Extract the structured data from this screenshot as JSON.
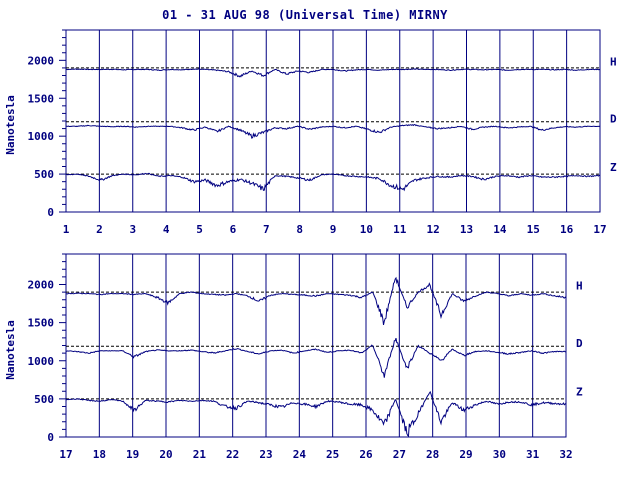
{
  "title": "01 - 31 AUG 98 (Universal Time) MIRNY",
  "chart_data": [
    {
      "type": "line",
      "panel": "top",
      "ylabel": "Nanotesla",
      "ylim": [
        0,
        2400
      ],
      "yticks": [
        0,
        500,
        1000,
        1500,
        2000
      ],
      "xlim": [
        1,
        17
      ],
      "xticks": [
        "1",
        "2",
        "3",
        "4",
        "5",
        "6",
        "7",
        "8",
        "9",
        "10",
        "11",
        "12",
        "13",
        "14",
        "15",
        "16",
        "17"
      ],
      "baselines": [
        1900,
        1190,
        500
      ],
      "series": [
        {
          "name": "H",
          "base": 1880,
          "values": [
            1880,
            1885,
            1880,
            1880,
            1882,
            1875,
            1880,
            1880,
            1870,
            1880,
            1875,
            1885,
            1880,
            1870,
            1850,
            1790,
            1860,
            1800,
            1880,
            1820,
            1860,
            1840,
            1880,
            1880,
            1860,
            1875,
            1880,
            1870,
            1880,
            1880,
            1885,
            1880,
            1880,
            1870,
            1880,
            1880,
            1875,
            1880,
            1870,
            1880,
            1880,
            1880,
            1875,
            1880,
            1870,
            1880,
            1880
          ]
        },
        {
          "name": "D",
          "base": 1130,
          "values": [
            1130,
            1130,
            1140,
            1130,
            1125,
            1130,
            1120,
            1130,
            1130,
            1130,
            1110,
            1080,
            1120,
            1060,
            1130,
            1080,
            1000,
            1050,
            1110,
            1100,
            1130,
            1090,
            1120,
            1130,
            1110,
            1130,
            1090,
            1050,
            1120,
            1140,
            1150,
            1120,
            1100,
            1110,
            1130,
            1090,
            1120,
            1130,
            1110,
            1120,
            1130,
            1080,
            1110,
            1125,
            1120,
            1130,
            1130
          ]
        },
        {
          "name": "Z",
          "base": 490,
          "values": [
            490,
            500,
            470,
            420,
            480,
            500,
            490,
            510,
            470,
            480,
            460,
            400,
            420,
            350,
            400,
            430,
            380,
            300,
            480,
            470,
            450,
            420,
            490,
            500,
            480,
            470,
            460,
            440,
            350,
            300,
            420,
            450,
            470,
            460,
            480,
            470,
            430,
            470,
            480,
            460,
            480,
            460,
            460,
            470,
            480,
            470,
            480
          ]
        }
      ]
    },
    {
      "type": "line",
      "panel": "bottom",
      "ylabel": "Nanotesla",
      "ylim": [
        0,
        2400
      ],
      "yticks": [
        0,
        500,
        1000,
        1500,
        2000
      ],
      "xlim": [
        17,
        32
      ],
      "xticks": [
        "17",
        "18",
        "19",
        "20",
        "21",
        "22",
        "23",
        "24",
        "25",
        "26",
        "27",
        "28",
        "29",
        "30",
        "31",
        "32"
      ],
      "baselines": [
        1900,
        1190,
        500
      ],
      "series": [
        {
          "name": "H",
          "base": 1880,
          "values": [
            1880,
            1885,
            1880,
            1870,
            1880,
            1880,
            1870,
            1880,
            1830,
            1760,
            1880,
            1900,
            1880,
            1870,
            1860,
            1880,
            1850,
            1780,
            1860,
            1880,
            1870,
            1860,
            1850,
            1880,
            1870,
            1860,
            1830,
            1900,
            1500,
            2100,
            1700,
            1900,
            2000,
            1600,
            1880,
            1780,
            1850,
            1900,
            1880,
            1850,
            1880,
            1860,
            1880,
            1850,
            1830
          ]
        },
        {
          "name": "D",
          "base": 1130,
          "values": [
            1130,
            1120,
            1100,
            1130,
            1130,
            1130,
            1050,
            1120,
            1140,
            1130,
            1130,
            1140,
            1120,
            1100,
            1130,
            1160,
            1120,
            1090,
            1130,
            1140,
            1100,
            1130,
            1150,
            1110,
            1130,
            1140,
            1100,
            1200,
            800,
            1300,
            900,
            1200,
            1100,
            1000,
            1150,
            1070,
            1120,
            1130,
            1110,
            1090,
            1110,
            1130,
            1100,
            1120,
            1120
          ]
        },
        {
          "name": "Z",
          "base": 490,
          "values": [
            490,
            500,
            480,
            470,
            490,
            470,
            350,
            480,
            470,
            460,
            480,
            470,
            480,
            470,
            400,
            380,
            470,
            450,
            420,
            390,
            450,
            430,
            400,
            470,
            460,
            430,
            420,
            350,
            150,
            500,
            50,
            300,
            600,
            200,
            450,
            350,
            420,
            470,
            430,
            460,
            460,
            420,
            450,
            440,
            430
          ]
        }
      ]
    }
  ],
  "component_labels": [
    "H",
    "D",
    "Z"
  ]
}
